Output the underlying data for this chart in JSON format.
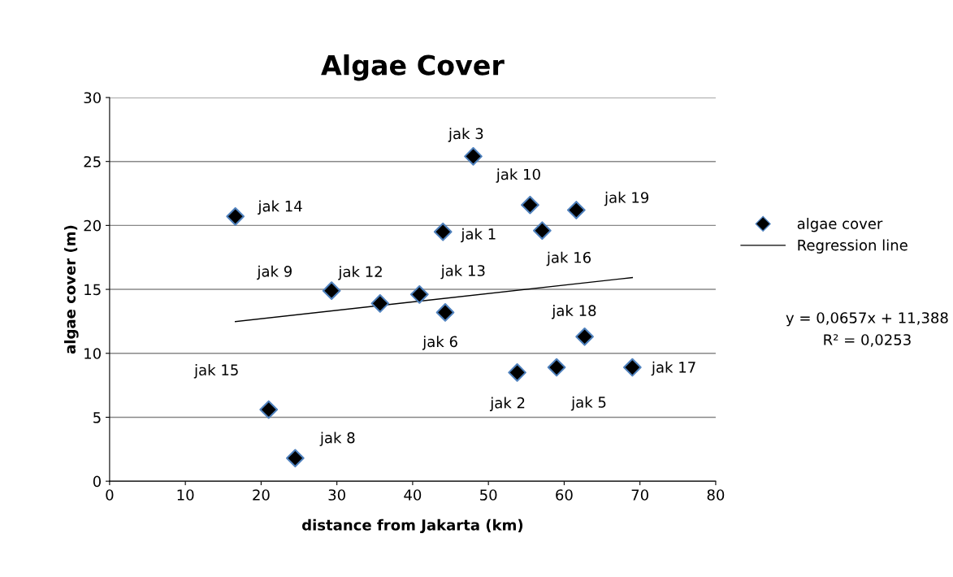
{
  "chart_data": {
    "type": "scatter",
    "title": "Algae Cover",
    "xlabel": "distance from Jakarta (km)",
    "ylabel": "algae cover (m)",
    "series": [
      {
        "name": "algae cover",
        "color": "#000000",
        "marker": "diamond",
        "x": [
          44.0,
          53.8,
          48.0,
          59.0,
          44.3,
          24.5,
          29.3,
          55.5,
          35.7,
          40.9,
          16.6,
          21.0,
          57.1,
          69.0,
          62.7,
          61.6
        ],
        "values": [
          19.5,
          8.5,
          25.4,
          8.9,
          13.2,
          1.8,
          14.9,
          21.6,
          13.9,
          14.6,
          20.7,
          5.6,
          19.6,
          8.9,
          11.3,
          21.2
        ]
      },
      {
        "name": "Regression line",
        "type": "line",
        "color": "#000000",
        "marker": "none",
        "line_style": "solid",
        "x": [
          16.6,
          69.0
        ],
        "values": [
          12.48,
          15.92
        ]
      }
    ],
    "annotations": [
      {
        "text": "jak 1",
        "x": 44.0,
        "y": 19.5
      },
      {
        "text": "jak 2",
        "x": 53.8,
        "y": 8.5
      },
      {
        "text": "jak 3",
        "x": 48.0,
        "y": 25.4
      },
      {
        "text": "jak 5",
        "x": 59.0,
        "y": 8.9
      },
      {
        "text": "jak 6",
        "x": 44.3,
        "y": 13.2
      },
      {
        "text": "jak 8",
        "x": 24.5,
        "y": 1.8
      },
      {
        "text": "jak 9",
        "x": 29.3,
        "y": 14.9
      },
      {
        "text": "jak 10",
        "x": 55.5,
        "y": 21.6
      },
      {
        "text": "jak 12",
        "x": 35.7,
        "y": 13.9
      },
      {
        "text": "jak 13",
        "x": 40.9,
        "y": 14.6
      },
      {
        "text": "jak 14",
        "x": 16.6,
        "y": 20.7
      },
      {
        "text": "jak 15",
        "x": 21.0,
        "y": 5.6
      },
      {
        "text": "jak 16",
        "x": 57.1,
        "y": 19.6
      },
      {
        "text": "jak 17",
        "x": 69.0,
        "y": 8.9
      },
      {
        "text": "jak 18",
        "x": 62.7,
        "y": 11.3
      },
      {
        "text": "jak 19",
        "x": 61.6,
        "y": 21.2
      },
      "y = 0,0657x + 11,388",
      "R² = 0,0253"
    ],
    "xlim": [
      0,
      80
    ],
    "xticks": [
      0,
      10,
      20,
      30,
      40,
      50,
      60,
      70,
      80
    ],
    "ylim": [
      0,
      30
    ],
    "yticks": [
      0,
      5,
      10,
      15,
      20,
      25,
      30
    ],
    "grid": "y",
    "legend": "right"
  }
}
